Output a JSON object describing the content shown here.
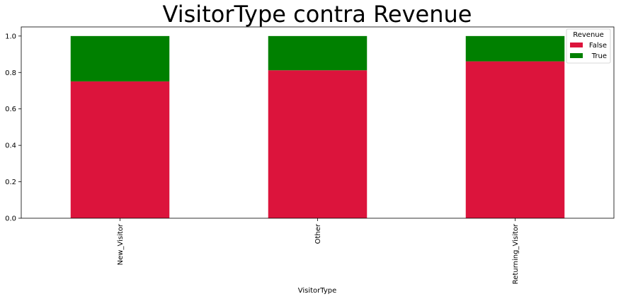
{
  "chart_data": {
    "type": "bar",
    "stacked": true,
    "title": "VisitorType contra Revenue",
    "xlabel": "VisitorType",
    "ylabel": "",
    "categories": [
      "New_Visitor",
      "Other",
      "Returning_Visitor"
    ],
    "series": [
      {
        "name": "False",
        "values": [
          0.751,
          0.812,
          0.861
        ],
        "color": "#dc143c"
      },
      {
        "name": "True",
        "values": [
          0.249,
          0.188,
          0.139
        ],
        "color": "#008000"
      }
    ],
    "ylim": [
      0,
      1.05
    ],
    "yticks": [
      "0.0",
      "0.2",
      "0.4",
      "0.6",
      "0.8",
      "1.0"
    ],
    "legend": {
      "title": "Revenue",
      "placement": "top-right"
    },
    "grid": false
  }
}
